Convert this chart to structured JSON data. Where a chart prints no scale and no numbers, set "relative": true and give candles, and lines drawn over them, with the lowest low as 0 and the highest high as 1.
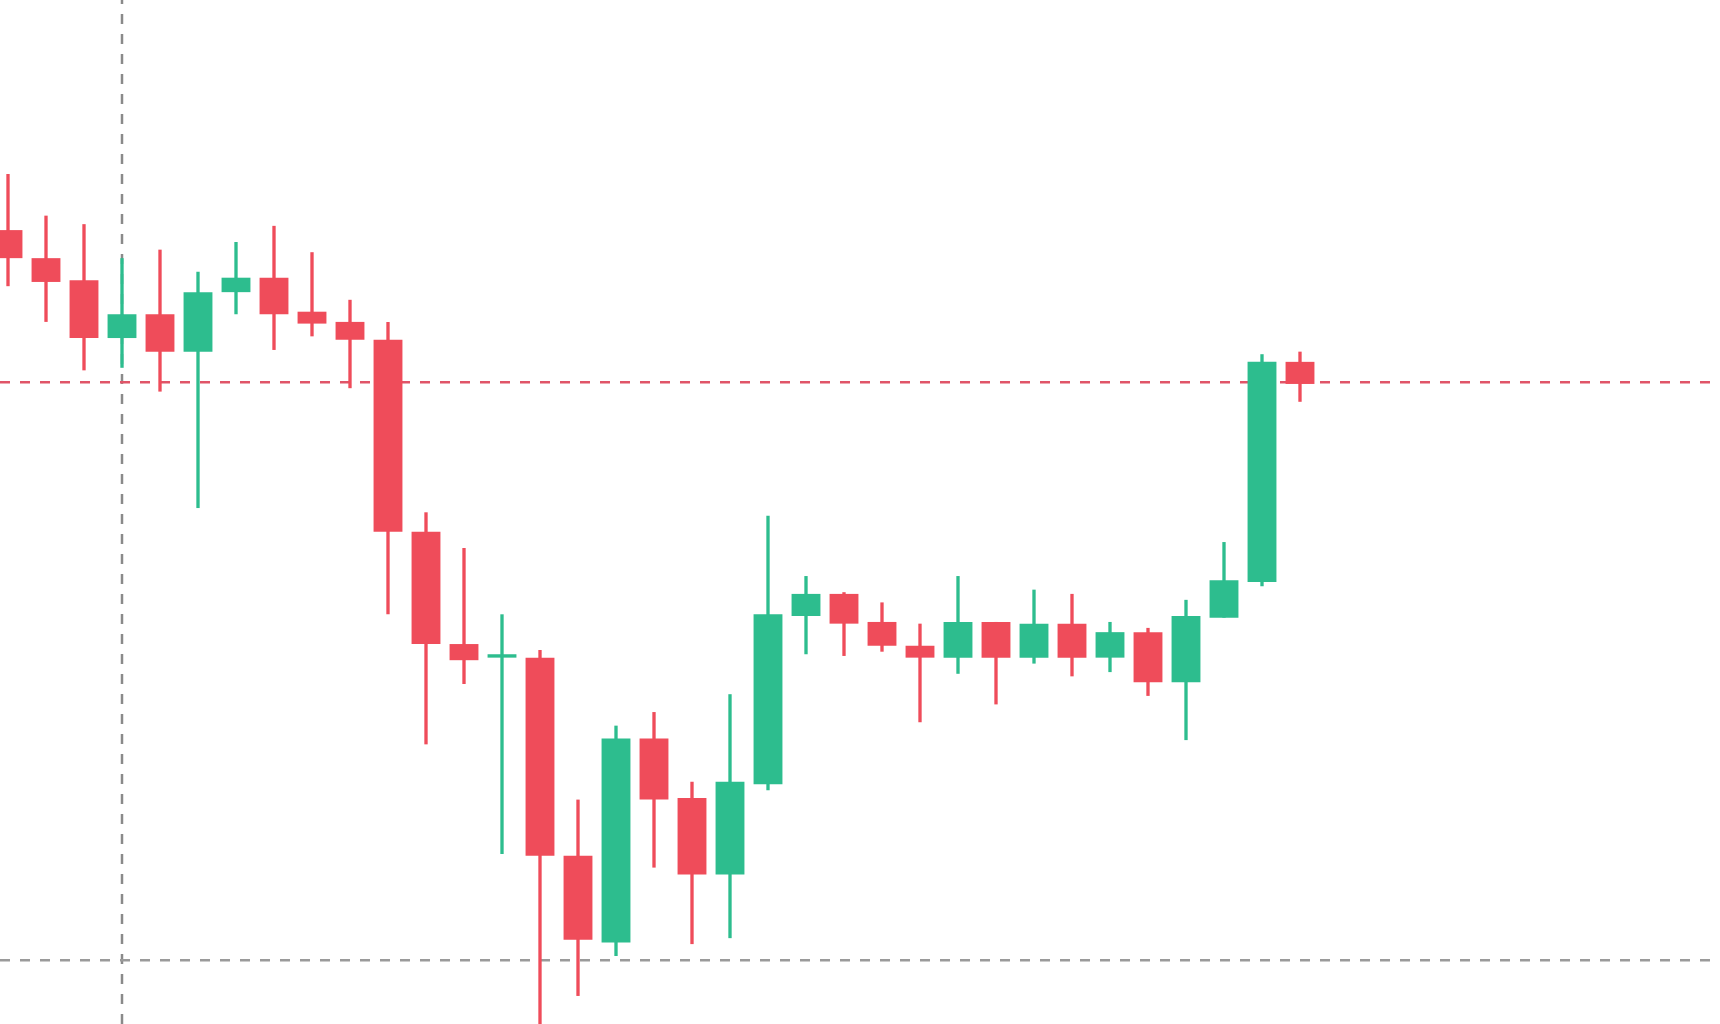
{
  "chart_data": {
    "type": "candlestick",
    "relative": true,
    "categories": [
      null,
      null,
      null,
      null,
      null,
      null,
      null,
      null,
      null,
      null,
      null,
      null,
      null,
      null,
      null,
      null,
      null,
      null,
      null,
      null,
      null,
      null,
      null,
      null,
      null,
      null,
      null,
      null,
      null,
      null,
      null,
      null,
      null,
      null,
      null
    ],
    "colors": [
      "#ef4c5a",
      "#ef4c5a",
      "#ef4c5a",
      "#2dbd8e",
      "#ef4c5a",
      "#2dbd8e",
      "#2dbd8e",
      "#ef4c5a",
      "#ef4c5a",
      "#ef4c5a",
      "#ef4c5a",
      "#ef4c5a",
      "#ef4c5a",
      "#2dbd8e",
      "#ef4c5a",
      "#ef4c5a",
      "#2dbd8e",
      "#ef4c5a",
      "#ef4c5a",
      "#2dbd8e",
      "#2dbd8e",
      "#2dbd8e",
      "#ef4c5a",
      "#ef4c5a",
      "#ef4c5a",
      "#2dbd8e",
      "#ef4c5a",
      "#2dbd8e",
      "#ef4c5a",
      "#2dbd8e",
      "#ef4c5a",
      "#2dbd8e",
      "#2dbd8e",
      "#2dbd8e",
      "#ef4c5a"
    ],
    "ohlc": [
      [
        0.934,
        1.0,
        0.868,
        0.901
      ],
      [
        0.901,
        0.951,
        0.826,
        0.873
      ],
      [
        0.875,
        0.941,
        0.769,
        0.807
      ],
      [
        0.807,
        0.901,
        0.772,
        0.835
      ],
      [
        0.835,
        0.911,
        0.744,
        0.791
      ],
      [
        0.791,
        0.885,
        0.607,
        0.861
      ],
      [
        0.861,
        0.92,
        0.835,
        0.878
      ],
      [
        0.878,
        0.939,
        0.793,
        0.835
      ],
      [
        0.838,
        0.908,
        0.809,
        0.824
      ],
      [
        0.826,
        0.852,
        0.748,
        0.805
      ],
      [
        0.805,
        0.826,
        0.482,
        0.579
      ],
      [
        0.579,
        0.602,
        0.329,
        0.447
      ],
      [
        0.447,
        0.56,
        0.4,
        0.428
      ],
      [
        0.431,
        0.482,
        0.2,
        0.433
      ],
      [
        0.431,
        0.44,
        0.0,
        0.198
      ],
      [
        0.198,
        0.264,
        0.033,
        0.099
      ],
      [
        0.096,
        0.351,
        0.08,
        0.336
      ],
      [
        0.336,
        0.367,
        0.184,
        0.264
      ],
      [
        0.266,
        0.285,
        0.094,
        0.176
      ],
      [
        0.176,
        0.388,
        0.101,
        0.285
      ],
      [
        0.282,
        0.598,
        0.275,
        0.482
      ],
      [
        0.48,
        0.527,
        0.435,
        0.506
      ],
      [
        0.506,
        0.508,
        0.433,
        0.471
      ],
      [
        0.473,
        0.496,
        0.438,
        0.445
      ],
      [
        0.445,
        0.471,
        0.355,
        0.431
      ],
      [
        0.431,
        0.527,
        0.412,
        0.473
      ],
      [
        0.473,
        0.473,
        0.376,
        0.431
      ],
      [
        0.431,
        0.511,
        0.424,
        0.471
      ],
      [
        0.471,
        0.506,
        0.409,
        0.431
      ],
      [
        0.431,
        0.473,
        0.414,
        0.461
      ],
      [
        0.461,
        0.466,
        0.386,
        0.402
      ],
      [
        0.402,
        0.499,
        0.334,
        0.48
      ],
      [
        0.478,
        0.567,
        0.478,
        0.522
      ],
      [
        0.52,
        0.788,
        0.515,
        0.779
      ],
      [
        0.779,
        0.791,
        0.732,
        0.753
      ]
    ],
    "ref_lines": [
      {
        "axis": "y",
        "value": 0.755,
        "color": "#e05568",
        "line_style": "dashed"
      },
      {
        "axis": "y",
        "value": 0.075,
        "color": "#9a9a9a",
        "line_style": "dashed"
      }
    ]
  }
}
